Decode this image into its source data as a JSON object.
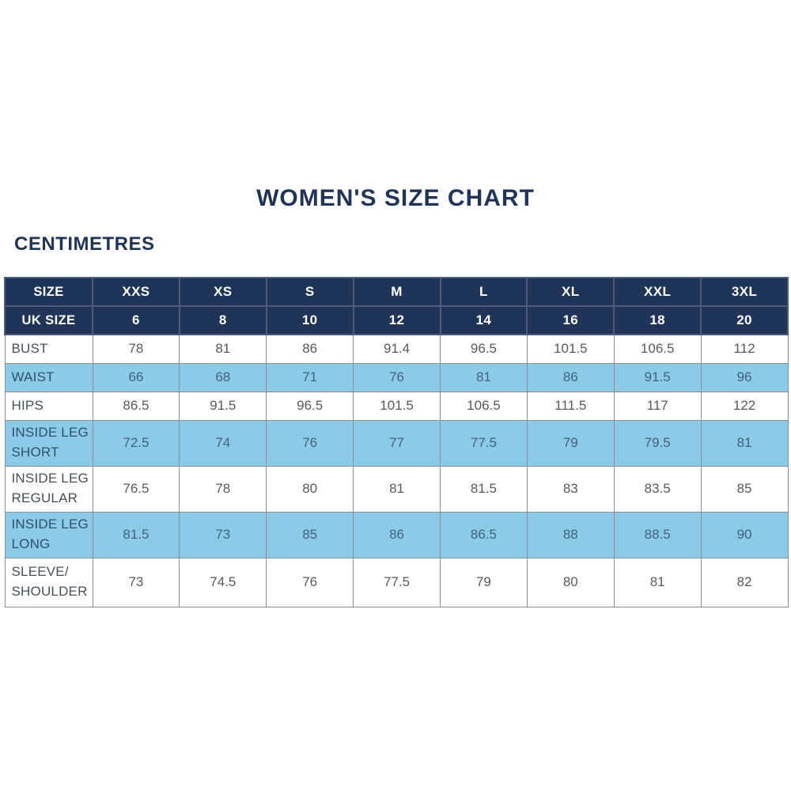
{
  "page_title": "WOMEN'S SIZE CHART",
  "unit_label": "CENTIMETRES",
  "colors": {
    "navy": "#1f3456",
    "light_blue": "#8ccbe8",
    "white_row": "#ffffff",
    "value_text": "#58595b",
    "title_text": "#1f3456"
  },
  "chart_data": {
    "type": "table",
    "title": "WOMEN'S SIZE CHART",
    "unit": "CENTIMETRES",
    "size_header": {
      "label": "SIZE",
      "values": [
        "XXS",
        "XS",
        "S",
        "M",
        "L",
        "XL",
        "XXL",
        "3XL"
      ]
    },
    "uk_size_header": {
      "label": "UK SIZE",
      "values": [
        "6",
        "8",
        "10",
        "12",
        "14",
        "16",
        "18",
        "20"
      ]
    },
    "rows": [
      {
        "label": "BUST",
        "values": [
          "78",
          "81",
          "86",
          "91.4",
          "96.5",
          "101.5",
          "106.5",
          "112"
        ]
      },
      {
        "label": "WAIST",
        "values": [
          "66",
          "68",
          "71",
          "76",
          "81",
          "86",
          "91.5",
          "96"
        ]
      },
      {
        "label": "HIPS",
        "values": [
          "86.5",
          "91.5",
          "96.5",
          "101.5",
          "106.5",
          "111.5",
          "117",
          "122"
        ]
      },
      {
        "label": "INSIDE LEG SHORT",
        "values": [
          "72.5",
          "74",
          "76",
          "77",
          "77.5",
          "79",
          "79.5",
          "81"
        ]
      },
      {
        "label": "INSIDE LEG REGULAR",
        "values": [
          "76.5",
          "78",
          "80",
          "81",
          "81.5",
          "83",
          "83.5",
          "85"
        ]
      },
      {
        "label": "INSIDE LEG LONG",
        "values": [
          "81.5",
          "73",
          "85",
          "86",
          "86.5",
          "88",
          "88.5",
          "90"
        ]
      },
      {
        "label": "SLEEVE/ SHOULDER",
        "values": [
          "73",
          "74.5",
          "76",
          "77.5",
          "79",
          "80",
          "81",
          "82"
        ]
      }
    ]
  }
}
